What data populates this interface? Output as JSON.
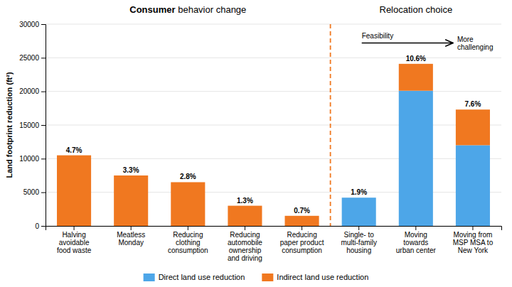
{
  "chart_data": {
    "type": "bar",
    "stacked": true,
    "categories": [
      "Halving\navoidable\nfood waste",
      "Meatless\nMonday",
      "Reducing\nclothing\nconsumption",
      "Reducing\nautomobile\nownership\nand driving",
      "Reducing\npaper product\nconsumption",
      "Single- to\nmulti-family\nhousing",
      "Moving\ntowards\nurban center",
      "Moving from\nMSP MSA to\nNew York"
    ],
    "series": [
      {
        "name": "Direct land use reduction",
        "color": "#4da6e8",
        "values": [
          0,
          0,
          0,
          0,
          0,
          4200,
          20100,
          12000
        ]
      },
      {
        "name": "Indirect land use reduction",
        "color": "#f07820",
        "values": [
          10500,
          7500,
          6500,
          3000,
          1500,
          0,
          4000,
          5300
        ]
      }
    ],
    "percentages": [
      "4.7%",
      "3.3%",
      "2.8%",
      "1.3%",
      "0.7%",
      "1.9%",
      "10.6%",
      "7.6%"
    ],
    "ylabel": "Land footprint reduction (ft²)",
    "ylim": [
      0,
      30000
    ],
    "yticks": [
      0,
      5000,
      10000,
      15000,
      20000,
      25000,
      30000
    ],
    "grid": true,
    "legend": "bottom",
    "annotations": [
      {
        "type": "divider",
        "x": 4.5,
        "color": "#f07820",
        "line_style": "dashed",
        "left_title": "Consumer behavior change",
        "right_title": "Relocation choice"
      },
      {
        "type": "arrow",
        "x": [
          5.05,
          6.65
        ],
        "y": 27200,
        "start_text": "Feasibility",
        "end_text": "More\nchallenging"
      }
    ]
  }
}
